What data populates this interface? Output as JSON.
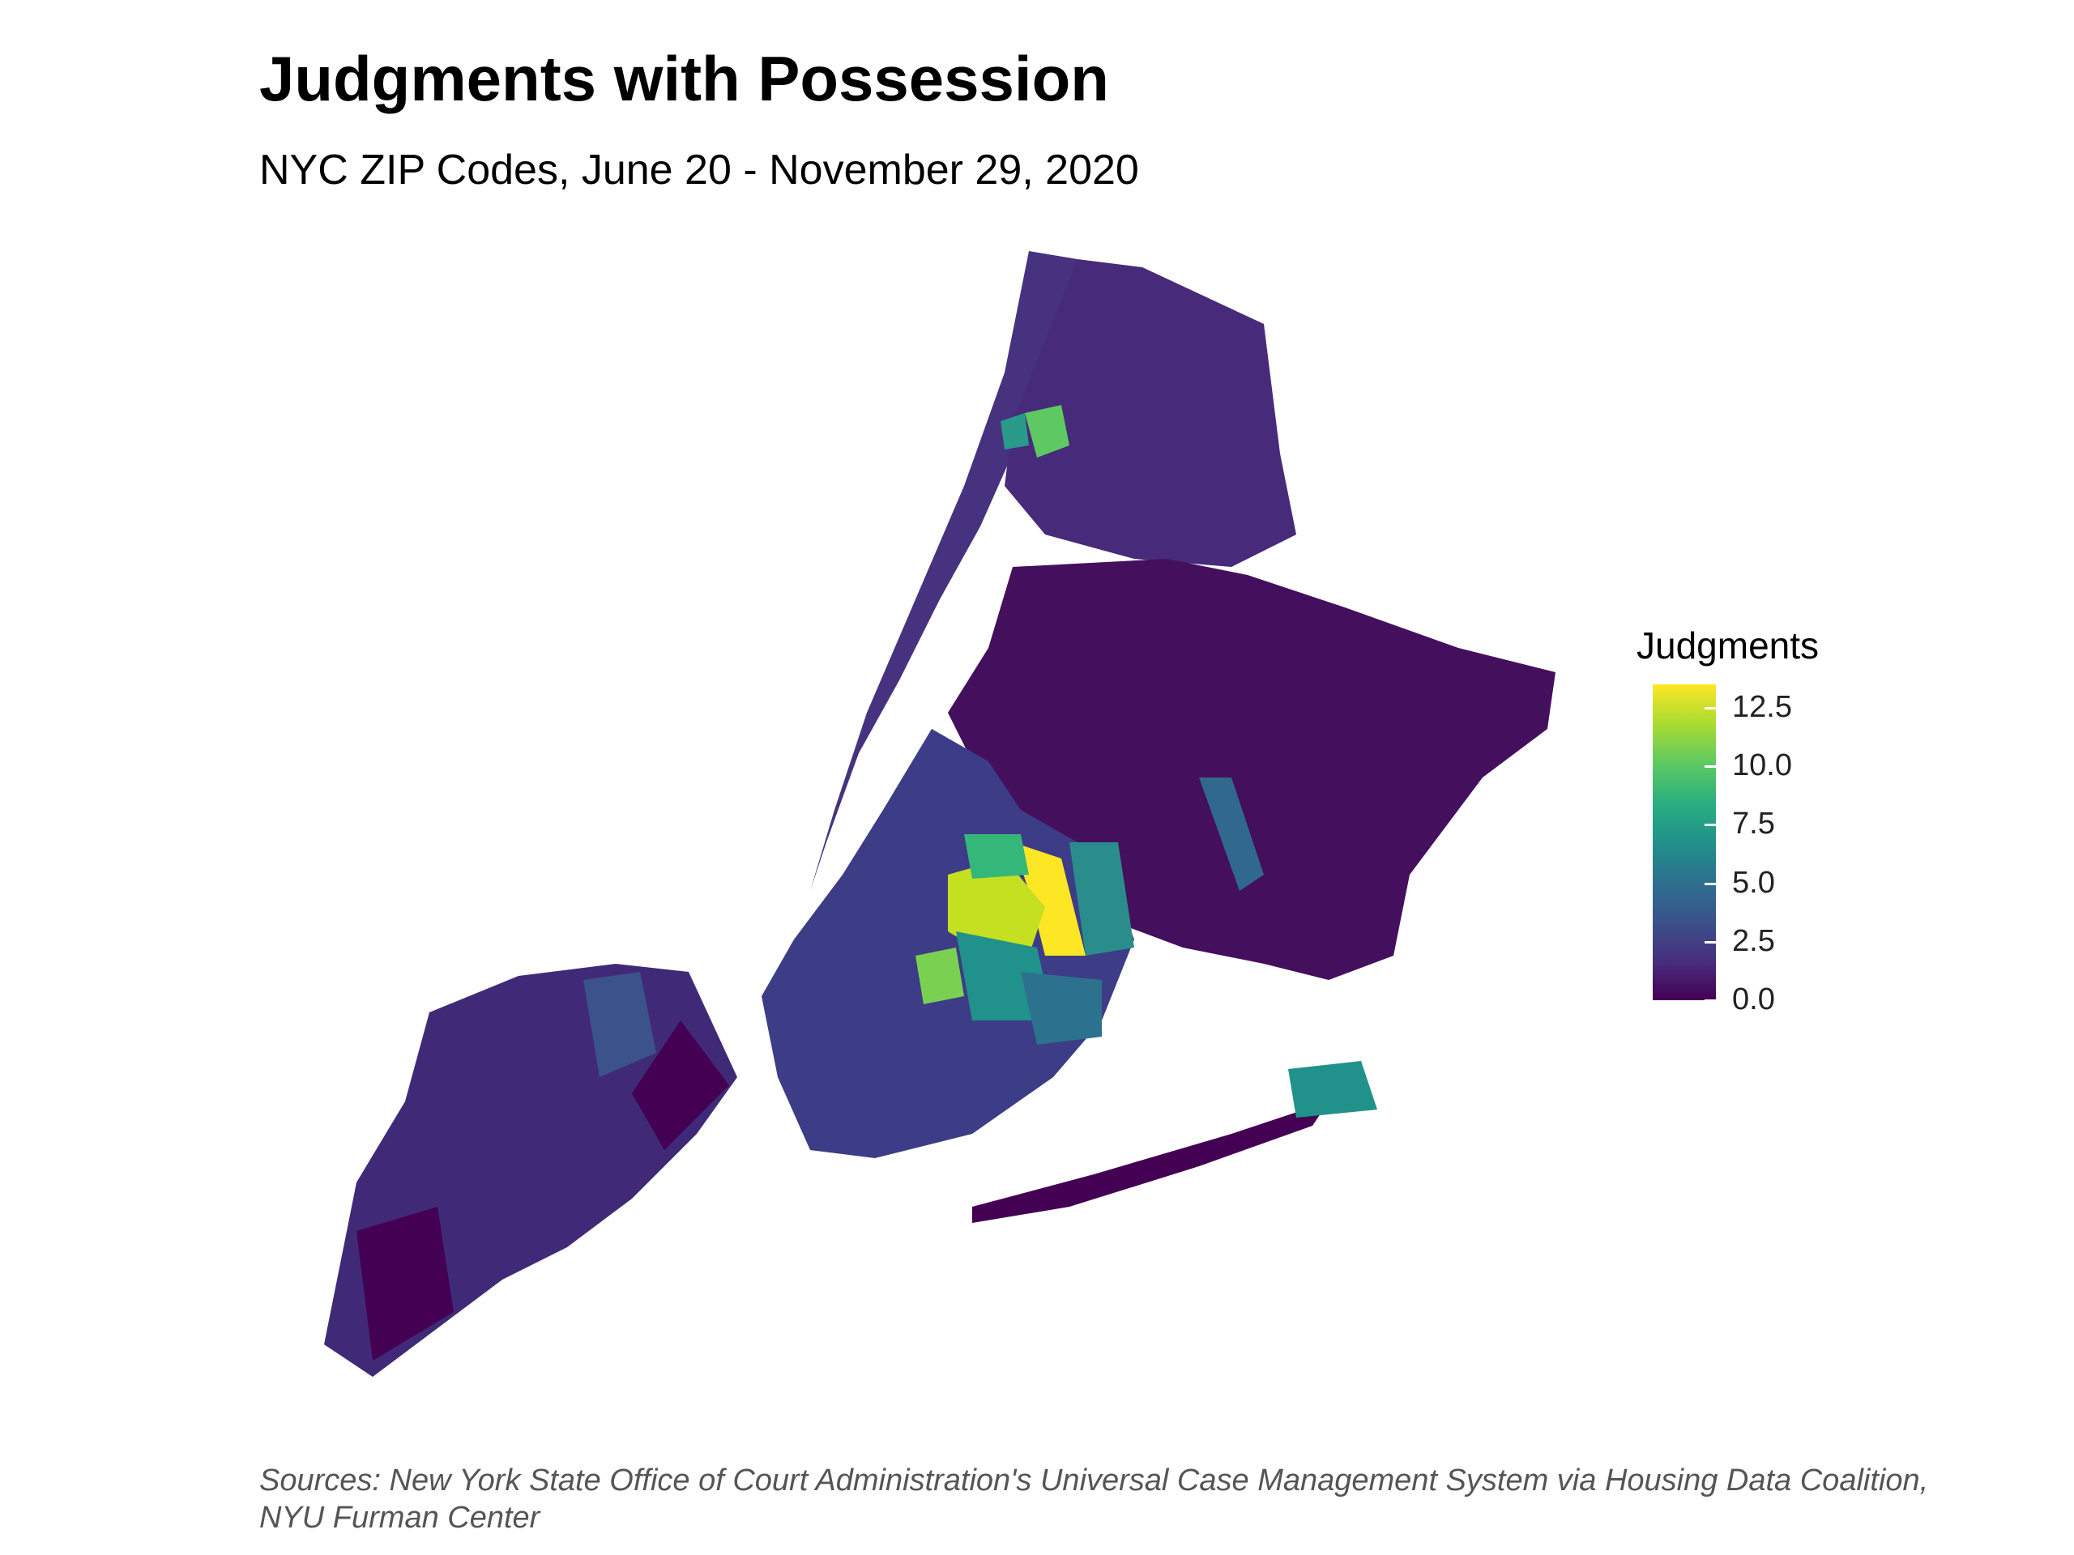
{
  "title": "Judgments with Possession",
  "subtitle": "NYC ZIP Codes, June 20 - November 29, 2020",
  "caption_line1": "Sources: New York State Office of Court Administration's Universal Case Management System via Housing Data Coalition,",
  "caption_line2": "NYU Furman Center",
  "legend": {
    "title": "Judgments",
    "ticks": [
      "12.5",
      "10.0",
      "7.5",
      "5.0",
      "2.5",
      "0.0"
    ],
    "range": [
      0,
      13.5
    ]
  },
  "colors": {
    "low": "#440154",
    "mid": "#21918c",
    "high": "#fde725"
  }
}
